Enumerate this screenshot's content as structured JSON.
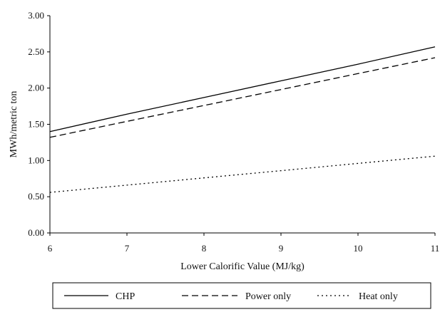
{
  "chart_data": {
    "type": "line",
    "title": "",
    "xlabel": "Lower Calorific Value (MJ/kg)",
    "ylabel": "MWh/metric ton",
    "xlim": [
      6,
      11
    ],
    "ylim": [
      0,
      3
    ],
    "x_ticks": [
      "6",
      "7",
      "8",
      "9",
      "10",
      "11"
    ],
    "y_ticks": [
      "0.00",
      "0.50",
      "1.00",
      "1.50",
      "2.00",
      "2.50",
      "3.00"
    ],
    "grid": false,
    "legend_position": "bottom",
    "series": [
      {
        "name": "CHP",
        "style": "solid",
        "x": [
          6,
          7,
          8,
          9,
          10,
          11
        ],
        "values": [
          1.4,
          1.64,
          1.87,
          2.1,
          2.33,
          2.57
        ]
      },
      {
        "name": "Power only",
        "style": "dashed",
        "x": [
          6,
          7,
          8,
          9,
          10,
          11
        ],
        "values": [
          1.32,
          1.54,
          1.76,
          1.98,
          2.2,
          2.42
        ]
      },
      {
        "name": "Heat only",
        "style": "dotted",
        "x": [
          6,
          7,
          8,
          9,
          10,
          11
        ],
        "values": [
          0.56,
          0.66,
          0.76,
          0.86,
          0.96,
          1.06
        ]
      }
    ]
  }
}
